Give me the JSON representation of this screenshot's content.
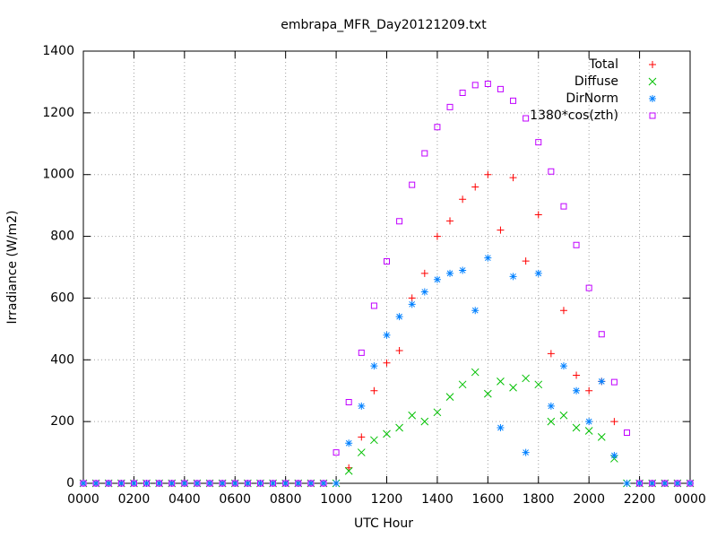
{
  "chart_data": {
    "type": "scatter",
    "title": "embrapa_MFR_Day20121209.txt",
    "xlabel": "UTC Hour",
    "ylabel": "Irradiance (W/m2)",
    "x": [
      0,
      0.5,
      1,
      1.5,
      2,
      2.5,
      3,
      3.5,
      4,
      4.5,
      5,
      5.5,
      6,
      6.5,
      7,
      7.5,
      8,
      8.5,
      9,
      9.5,
      10,
      10.5,
      11,
      11.5,
      12,
      12.5,
      13,
      13.5,
      14,
      14.5,
      15,
      15.5,
      16,
      16.5,
      17,
      17.5,
      18,
      18.5,
      19,
      19.5,
      20,
      20.5,
      21,
      21.5,
      22,
      22.5,
      23,
      23.5,
      24
    ],
    "series": [
      {
        "name": "Total",
        "color": "#ff0000",
        "values": [
          0,
          0,
          0,
          0,
          0,
          0,
          0,
          0,
          0,
          0,
          0,
          0,
          0,
          0,
          0,
          0,
          0,
          0,
          0,
          0,
          0,
          50,
          150,
          300,
          390,
          430,
          600,
          680,
          800,
          850,
          920,
          960,
          1000,
          820,
          990,
          720,
          870,
          420,
          560,
          350,
          300,
          330,
          200,
          0,
          0,
          0,
          0,
          0,
          0
        ]
      },
      {
        "name": "Diffuse",
        "color": "#00c000",
        "values": [
          0,
          0,
          0,
          0,
          0,
          0,
          0,
          0,
          0,
          0,
          0,
          0,
          0,
          0,
          0,
          0,
          0,
          0,
          0,
          0,
          0,
          40,
          100,
          140,
          160,
          180,
          220,
          200,
          230,
          280,
          320,
          360,
          290,
          330,
          310,
          340,
          320,
          200,
          220,
          180,
          170,
          150,
          80,
          0,
          0,
          0,
          0,
          0,
          0
        ]
      },
      {
        "name": "DirNorm",
        "color": "#0080ff",
        "values": [
          0,
          0,
          0,
          0,
          0,
          0,
          0,
          0,
          0,
          0,
          0,
          0,
          0,
          0,
          0,
          0,
          0,
          0,
          0,
          0,
          0,
          130,
          250,
          380,
          480,
          540,
          580,
          620,
          660,
          680,
          690,
          560,
          730,
          180,
          670,
          100,
          680,
          250,
          380,
          300,
          200,
          330,
          90,
          0,
          0,
          0,
          0,
          0,
          0
        ]
      },
      {
        "name": "1380*cos(zth)",
        "color": "#c000ff",
        "values": [
          0,
          0,
          0,
          0,
          0,
          0,
          0,
          0,
          0,
          0,
          0,
          0,
          0,
          0,
          0,
          0,
          0,
          0,
          0,
          0,
          100,
          263,
          423,
          575,
          719,
          849,
          967,
          1069,
          1154,
          1219,
          1265,
          1290,
          1294,
          1277,
          1239,
          1182,
          1105,
          1010,
          897,
          772,
          633,
          483,
          328,
          164,
          0,
          0,
          0,
          0,
          0
        ]
      }
    ],
    "xlim": [
      0,
      24
    ],
    "xticks": [
      {
        "value": 0,
        "label": "0000"
      },
      {
        "value": 2,
        "label": "0200"
      },
      {
        "value": 4,
        "label": "0400"
      },
      {
        "value": 6,
        "label": "0600"
      },
      {
        "value": 8,
        "label": "0800"
      },
      {
        "value": 10,
        "label": "1000"
      },
      {
        "value": 12,
        "label": "1200"
      },
      {
        "value": 14,
        "label": "1400"
      },
      {
        "value": 16,
        "label": "1600"
      },
      {
        "value": 18,
        "label": "1800"
      },
      {
        "value": 20,
        "label": "2000"
      },
      {
        "value": 22,
        "label": "2200"
      },
      {
        "value": 24,
        "label": "0000"
      }
    ],
    "ylim": [
      0,
      1400
    ],
    "yticks": [
      0,
      200,
      400,
      600,
      800,
      1000,
      1200,
      1400
    ],
    "grid": true,
    "legend": "top-right"
  }
}
